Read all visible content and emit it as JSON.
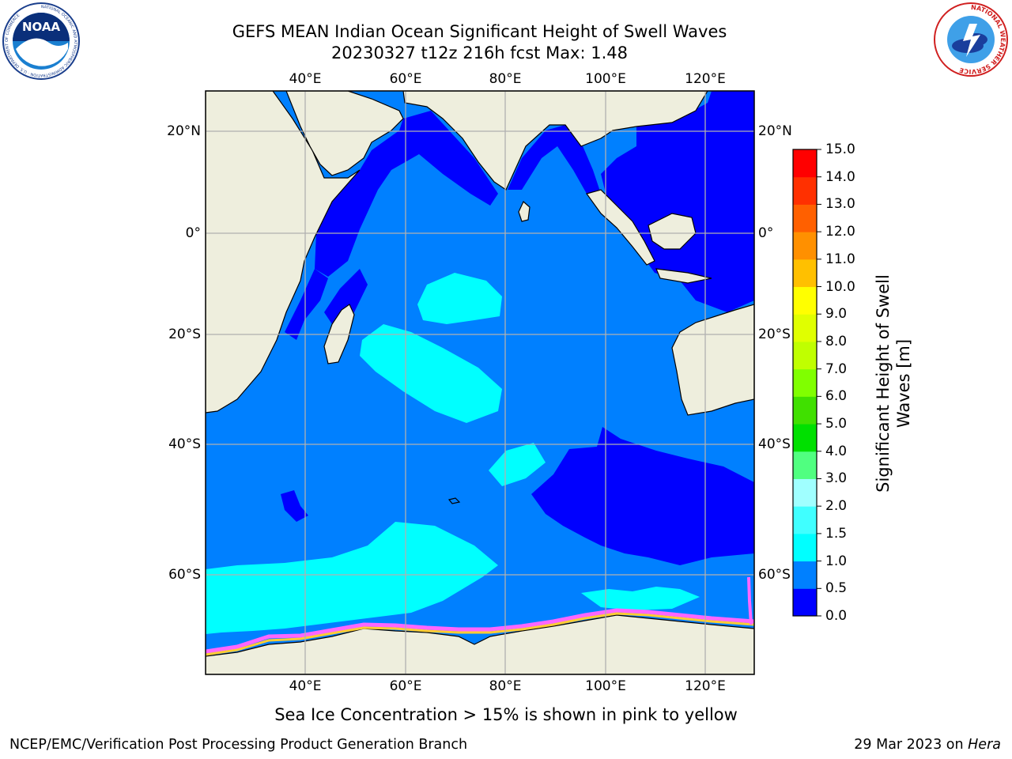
{
  "header": {
    "title_line1": "GEFS MEAN Indian Ocean Significant Height of Swell Waves",
    "title_line2": "20230327 t12z 216h fcst   Max: 1.48"
  },
  "logos": {
    "noaa": {
      "text": "NOAA",
      "ring_text": "NATIONAL OCEANIC AND ATMOSPHERIC ADMINISTRATION · U.S. DEPARTMENT OF COMMERCE"
    },
    "nws": {
      "ring_text": "NATIONAL WEATHER SERVICE"
    }
  },
  "map": {
    "lon_ticks": [
      "40°E",
      "60°E",
      "80°E",
      "100°E",
      "120°E"
    ],
    "lat_ticks": [
      "20°N",
      "0°",
      "20°S",
      "40°S",
      "60°S"
    ],
    "colors": {
      "land": "#eeeedd",
      "ocean_base": "#0080ff",
      "deep_blue": "#0000ff",
      "cyan": "#00ffff",
      "light_cyan": "#33ffff",
      "ice_pink": "#ff66ff",
      "ice_yellow": "#ffcc33",
      "grid": "#b0b0b0"
    }
  },
  "colorbar": {
    "label_line1": "Significant Height of Swell",
    "label_line2": "Waves [m]",
    "ticks": [
      "0.0",
      "0.5",
      "1.0",
      "1.5",
      "2.0",
      "3.0",
      "4.0",
      "5.0",
      "6.0",
      "7.0",
      "8.0",
      "9.0",
      "10.0",
      "11.0",
      "12.0",
      "13.0",
      "14.0",
      "15.0"
    ],
    "colors": [
      "#0000ff",
      "#0080ff",
      "#00ffff",
      "#40ffff",
      "#a0ffff",
      "#50ff80",
      "#00e000",
      "#40e000",
      "#80ff00",
      "#c0ff00",
      "#e0ff00",
      "#ffff00",
      "#ffc000",
      "#ff9000",
      "#ff6000",
      "#ff3000",
      "#ff0000"
    ]
  },
  "captions": {
    "sea_ice": "Sea Ice Concentration > 15% is shown in pink to yellow"
  },
  "footer": {
    "left": "NCEP/EMC/Verification Post Processing Product Generation Branch",
    "right_prefix": "29 Mar 2023 on ",
    "right_machine": "Hera"
  }
}
